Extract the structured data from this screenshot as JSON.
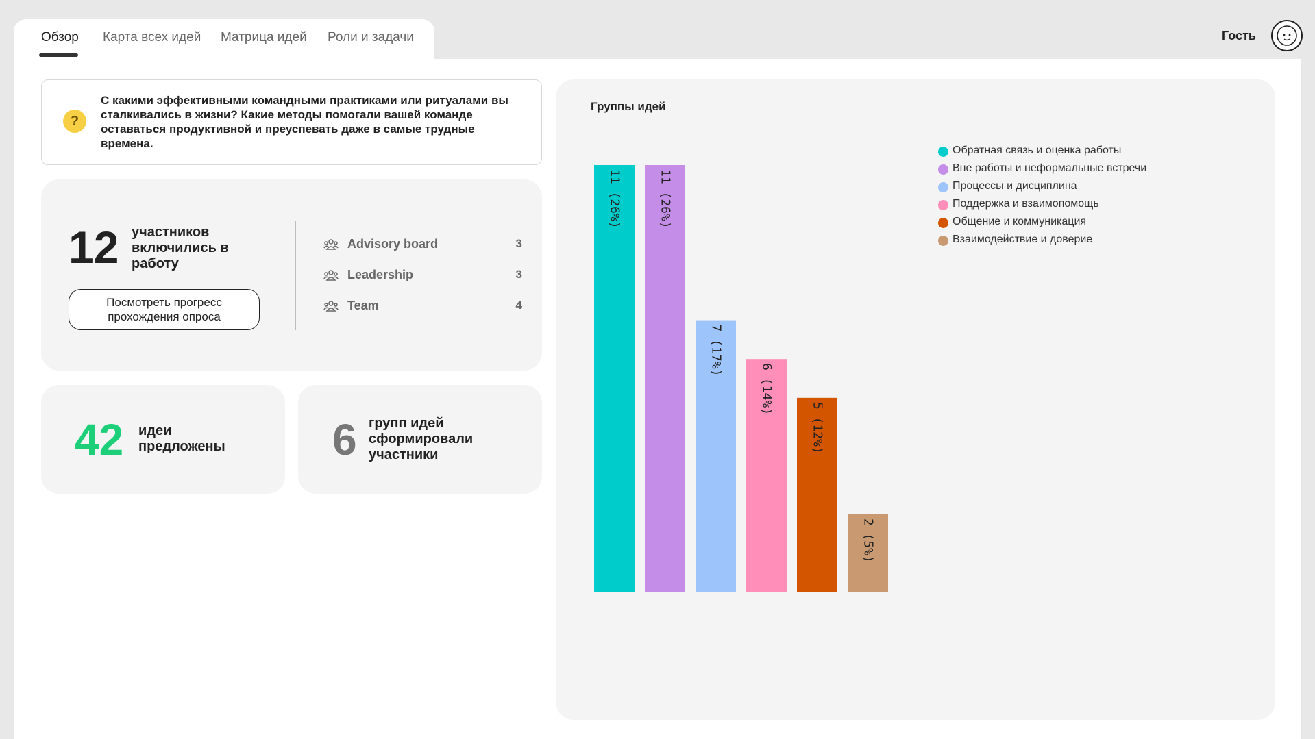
{
  "tabs": [
    {
      "label": "Обзор",
      "active": true
    },
    {
      "label": "Карта всех идей",
      "active": false
    },
    {
      "label": "Матрица идей",
      "active": false
    },
    {
      "label": "Роли и задачи",
      "active": false
    }
  ],
  "user": {
    "name": "Гость",
    "avatar_icon": "avatar-face-icon"
  },
  "question": {
    "icon": "question-icon",
    "text": "С какими эффективными командными практиками или ритуалами вы сталкивались в жизни? Какие методы помогали вашей команде оставаться продуктивной и преуспевать даже в самые трудные времена."
  },
  "participants": {
    "count": "12",
    "label": "участников включились в работу",
    "progress_button": "Посмотреть прогресс прохождения опроса",
    "groups": [
      {
        "name": "Advisory board",
        "count": "3",
        "icon": "people-group-icon"
      },
      {
        "name": "Leadership",
        "count": "3",
        "icon": "people-group-icon"
      },
      {
        "name": "Team",
        "count": "4",
        "icon": "people-group-icon"
      }
    ]
  },
  "ideas": {
    "count": "42",
    "label": "идеи предложены",
    "color": "#1ecf7a"
  },
  "idea_groups": {
    "count": "6",
    "label": "групп идей сформировали участники",
    "color": "#777777"
  },
  "chart_data": {
    "type": "bar",
    "title": "Группы идей",
    "legend_position": "top-right",
    "categories": [
      "Обратная связь и оценка работы",
      "Вне работы и неформальные встречи",
      "Процессы и дисциплина",
      "Поддержка и взаимопомощь",
      "Общение и коммуникация",
      "Взаимодействие и доверие"
    ],
    "values": [
      11,
      11,
      7,
      6,
      5,
      2
    ],
    "data_labels": [
      "11 (26%)",
      "11 (26%)",
      "7 (17%)",
      "6 (14%)",
      "5 (12%)",
      "2 (5%)"
    ],
    "colors": [
      "#00cccc",
      "#c48ee8",
      "#9ec4fc",
      "#ff8fb8",
      "#d45500",
      "#c99a72"
    ],
    "ylim": [
      0,
      11
    ]
  }
}
